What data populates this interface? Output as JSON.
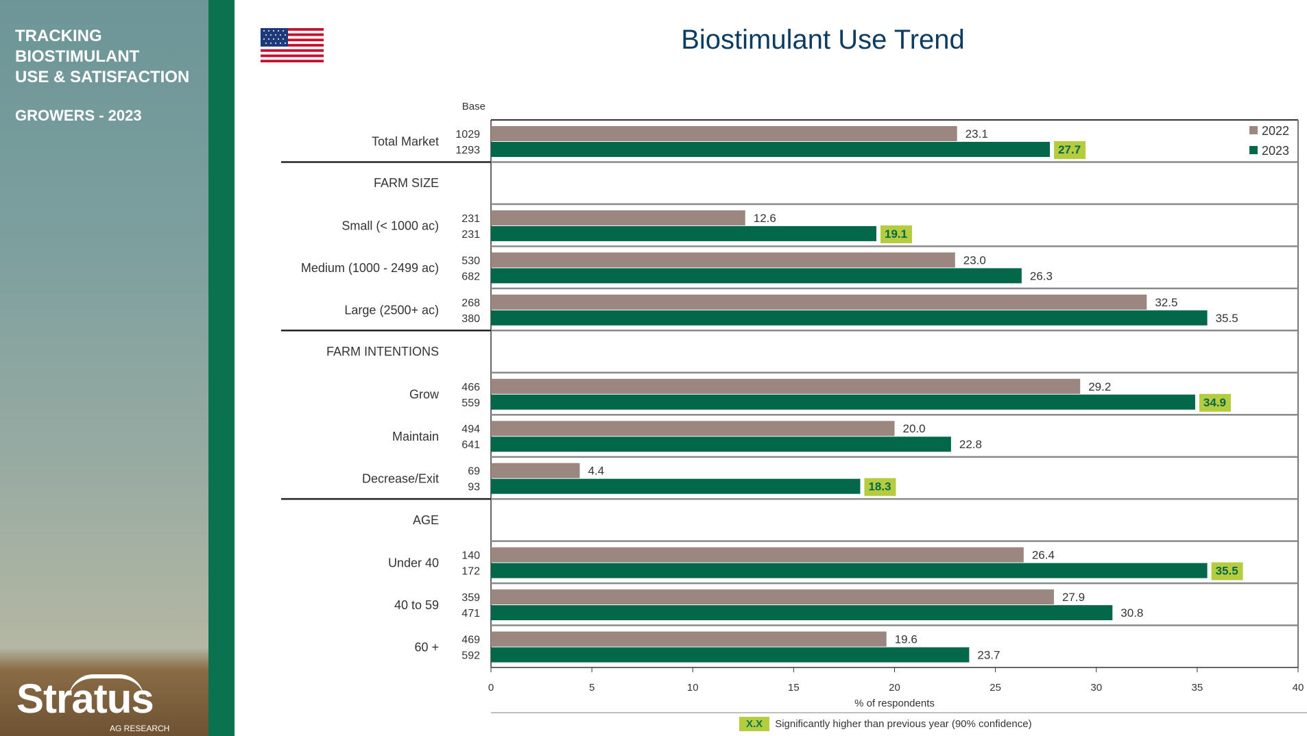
{
  "sidebar": {
    "title": "TRACKING\nBIOSTIMULANT\nUSE & SATISFACTION",
    "subtitle": "GROWERS - 2023",
    "logo": "Stratus",
    "logo_sub": "AG RESEARCH"
  },
  "flag": "us-flag-icon",
  "colors": {
    "s2022": "#9b8780",
    "s2023": "#036749",
    "highlight": "#b5cc3f",
    "title": "#0d3c61"
  },
  "note": {
    "marker": "X.X",
    "text": "Significantly higher than previous year (90% confidence)"
  },
  "chart_data": {
    "type": "bar",
    "orientation": "horizontal",
    "title": "Biostimulant Use Trend",
    "xlabel": "% of respondents",
    "base_label": "Base",
    "xlim": [
      0,
      40
    ],
    "xticks": [
      0,
      5,
      10,
      15,
      20,
      25,
      30,
      35,
      40
    ],
    "legend": {
      "position": "top-right",
      "entries": [
        "2022",
        "2023"
      ]
    },
    "rows": [
      {
        "label": "Total Market",
        "base": [
          "1029",
          "1293"
        ],
        "values": [
          23.1,
          27.7
        ],
        "labels": [
          "23.1",
          "27.7"
        ],
        "sig": true,
        "section_end": true
      },
      {
        "label": "FARM SIZE",
        "header": true
      },
      {
        "label": "Small (< 1000 ac)",
        "base": [
          "231",
          "231"
        ],
        "values": [
          12.6,
          19.1
        ],
        "labels": [
          "12.6",
          "19.1"
        ],
        "sig": true
      },
      {
        "label": "Medium (1000 - 2499 ac)",
        "base": [
          "530",
          "682"
        ],
        "values": [
          23.0,
          26.3
        ],
        "labels": [
          "23.0",
          "26.3"
        ],
        "sig": false
      },
      {
        "label": "Large (2500+ ac)",
        "base": [
          "268",
          "380"
        ],
        "values": [
          32.5,
          35.5
        ],
        "labels": [
          "32.5",
          "35.5"
        ],
        "sig": false,
        "section_end": true
      },
      {
        "label": "FARM INTENTIONS",
        "header": true
      },
      {
        "label": "Grow",
        "base": [
          "466",
          "559"
        ],
        "values": [
          29.2,
          34.9
        ],
        "labels": [
          "29.2",
          "34.9"
        ],
        "sig": true
      },
      {
        "label": "Maintain",
        "base": [
          "494",
          "641"
        ],
        "values": [
          20.0,
          22.8
        ],
        "labels": [
          "20.0",
          "22.8"
        ],
        "sig": false
      },
      {
        "label": "Decrease/Exit",
        "base": [
          "69",
          "93"
        ],
        "values": [
          4.4,
          18.3
        ],
        "labels": [
          "4.4",
          "18.3"
        ],
        "sig": true,
        "section_end": true
      },
      {
        "label": "AGE",
        "header": true
      },
      {
        "label": "Under 40",
        "base": [
          "140",
          "172"
        ],
        "values": [
          26.4,
          35.5
        ],
        "labels": [
          "26.4",
          "35.5"
        ],
        "sig": true
      },
      {
        "label": "40 to 59",
        "base": [
          "359",
          "471"
        ],
        "values": [
          27.9,
          30.8
        ],
        "labels": [
          "27.9",
          "30.8"
        ],
        "sig": false
      },
      {
        "label": "60 +",
        "base": [
          "469",
          "592"
        ],
        "values": [
          19.6,
          23.7
        ],
        "labels": [
          "19.6",
          "23.7"
        ],
        "sig": false
      }
    ]
  }
}
